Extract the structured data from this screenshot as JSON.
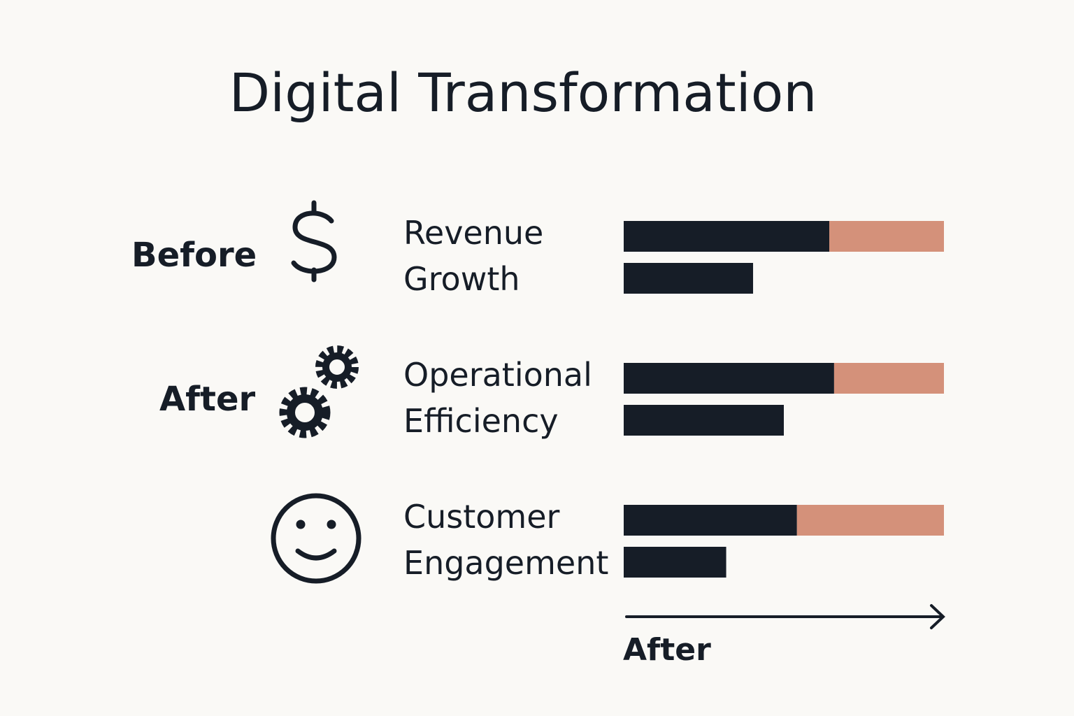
{
  "chart_data": {
    "type": "bar",
    "title": "Digital Transformation",
    "side_labels": [
      "Before",
      "After"
    ],
    "x_label": "After",
    "categories": [
      "Revenue Growth",
      "Operational Efficiency",
      "Customer Engagement"
    ],
    "xlim": [
      0,
      100
    ],
    "series": [
      {
        "color": "#161d27",
        "values": [
          64.2,
          65.7,
          54.1
        ]
      },
      {
        "color": "#d4917a",
        "values": [
          35.8,
          34.3,
          45.9
        ]
      },
      {
        "color": "#161d27",
        "values": [
          40.4,
          50,
          32
        ]
      }
    ]
  }
}
